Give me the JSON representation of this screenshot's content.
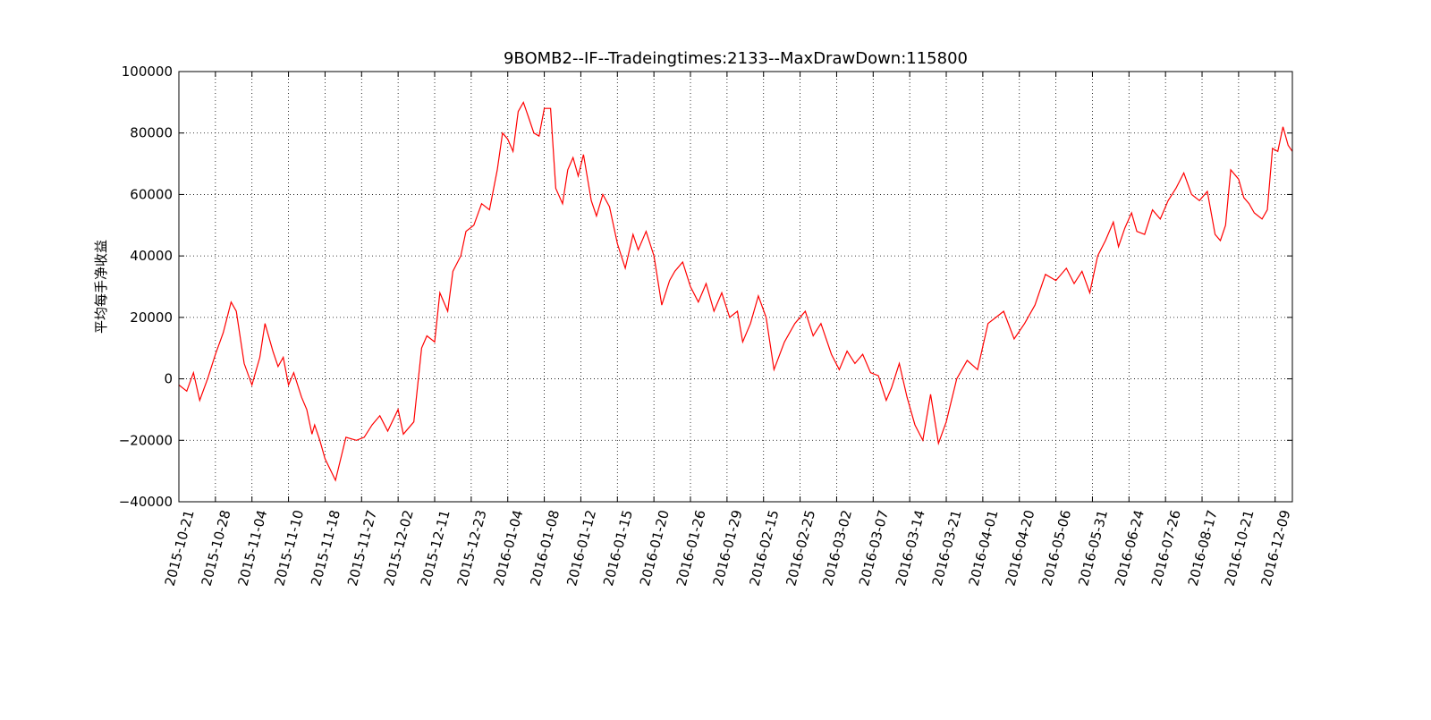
{
  "chart_data": {
    "type": "line",
    "title": "9BOMB2--IF--Tradeingtimes:2133--MaxDrawDown:115800",
    "xlabel": "",
    "ylabel": "平均每手净收益",
    "ylim": [
      -40000,
      100000
    ],
    "yticks": [
      -40000,
      -20000,
      0,
      20000,
      40000,
      60000,
      80000,
      100000
    ],
    "ytick_labels": [
      "−40000",
      "−20000",
      "0",
      "20000",
      "40000",
      "60000",
      "80000",
      "100000"
    ],
    "xlim": [
      0,
      2133
    ],
    "xticks": [
      0,
      70,
      140,
      210,
      280,
      350,
      420,
      490,
      560,
      630,
      700,
      770,
      840,
      910,
      980,
      1050,
      1120,
      1190,
      1260,
      1330,
      1400,
      1470,
      1540,
      1610,
      1680,
      1750,
      1820,
      1890,
      1960,
      2030,
      2100
    ],
    "xtick_labels": [
      "2015-10-21",
      "2015-10-28",
      "2015-11-04",
      "2015-11-10",
      "2015-11-18",
      "2015-11-27",
      "2015-12-02",
      "2015-12-11",
      "2015-12-23",
      "2016-01-04",
      "2016-01-08",
      "2016-01-12",
      "2016-01-15",
      "2016-01-20",
      "2016-01-26",
      "2016-01-29",
      "2016-02-15",
      "2016-02-25",
      "2016-03-02",
      "2016-03-07",
      "2016-03-14",
      "2016-03-21",
      "2016-04-01",
      "2016-04-20",
      "2016-05-06",
      "2016-05-31",
      "2016-06-24",
      "2016-07-26",
      "2016-08-17",
      "2016-10-21",
      "2016-12-09"
    ],
    "grid": true,
    "line_color": "#ff0000",
    "series": [
      {
        "x": [
          0,
          15,
          28,
          40,
          55,
          70,
          85,
          100,
          110,
          125,
          140,
          155,
          165,
          180,
          190,
          200,
          210,
          220,
          235,
          245,
          255,
          260,
          270,
          280,
          300,
          320,
          340,
          355,
          370,
          385,
          400,
          420,
          430,
          450,
          465,
          475,
          490,
          500,
          515,
          525,
          540,
          550,
          565,
          580,
          595,
          610,
          620,
          630,
          640,
          650,
          660,
          670,
          680,
          690,
          700,
          712,
          722,
          735,
          745,
          755,
          765,
          775,
          790,
          800,
          812,
          825,
          840,
          855,
          870,
          880,
          895,
          910,
          925,
          940,
          950,
          965,
          980,
          995,
          1010,
          1025,
          1040,
          1055,
          1070,
          1080,
          1095,
          1110,
          1125,
          1140,
          1160,
          1180,
          1200,
          1215,
          1230,
          1250,
          1265,
          1280,
          1295,
          1310,
          1325,
          1340,
          1355,
          1365,
          1380,
          1395,
          1410,
          1425,
          1440,
          1455,
          1470,
          1490,
          1510,
          1530,
          1550,
          1565,
          1580,
          1600,
          1620,
          1640,
          1660,
          1680,
          1700,
          1715,
          1730,
          1745,
          1760,
          1775,
          1790,
          1800,
          1812,
          1825,
          1835,
          1850,
          1865,
          1880,
          1895,
          1910,
          1925,
          1940,
          1955,
          1970,
          1985,
          1995,
          2005,
          2015,
          2030,
          2040,
          2050,
          2060,
          2075,
          2085,
          2095,
          2105,
          2115,
          2125,
          2133
        ],
        "y": [
          -2000,
          -4000,
          2000,
          -7000,
          0,
          8000,
          15000,
          25000,
          22000,
          5000,
          -2000,
          7000,
          18000,
          9000,
          4000,
          7000,
          -2000,
          2000,
          -6000,
          -10000,
          -18000,
          -15000,
          -20000,
          -26000,
          -33000,
          -19000,
          -20000,
          -19000,
          -15000,
          -12000,
          -17000,
          -10000,
          -18000,
          -14000,
          10000,
          14000,
          12000,
          28000,
          22000,
          35000,
          40000,
          48000,
          50000,
          57000,
          55000,
          68000,
          80000,
          78000,
          74000,
          87000,
          90000,
          85000,
          80000,
          79000,
          88000,
          88000,
          62000,
          57000,
          68000,
          72000,
          66000,
          73000,
          58000,
          53000,
          60000,
          56000,
          44000,
          36000,
          47000,
          42000,
          48000,
          40000,
          24000,
          32000,
          35000,
          38000,
          30000,
          25000,
          31000,
          22000,
          28000,
          20000,
          22000,
          12000,
          18000,
          27000,
          20000,
          3000,
          12000,
          18000,
          22000,
          14000,
          18000,
          8000,
          3000,
          9000,
          5000,
          8000,
          2000,
          1000,
          -7000,
          -3000,
          5000,
          -6000,
          -15000,
          -20000,
          -5000,
          -21000,
          -14000,
          0,
          6000,
          3000,
          18000,
          20000,
          22000,
          13000,
          18000,
          24000,
          34000,
          32000,
          36000,
          31000,
          35000,
          28000,
          40000,
          45000,
          51000,
          43000,
          49000,
          54000,
          48000,
          47000,
          55000,
          52000,
          58000,
          62000,
          67000,
          60000,
          58000,
          61000,
          47000,
          45000,
          50000,
          68000,
          65000,
          59000,
          57000,
          54000,
          52000,
          55000,
          75000,
          74000,
          82000,
          76000,
          74000
        ],
        "note_points": []
      }
    ]
  }
}
